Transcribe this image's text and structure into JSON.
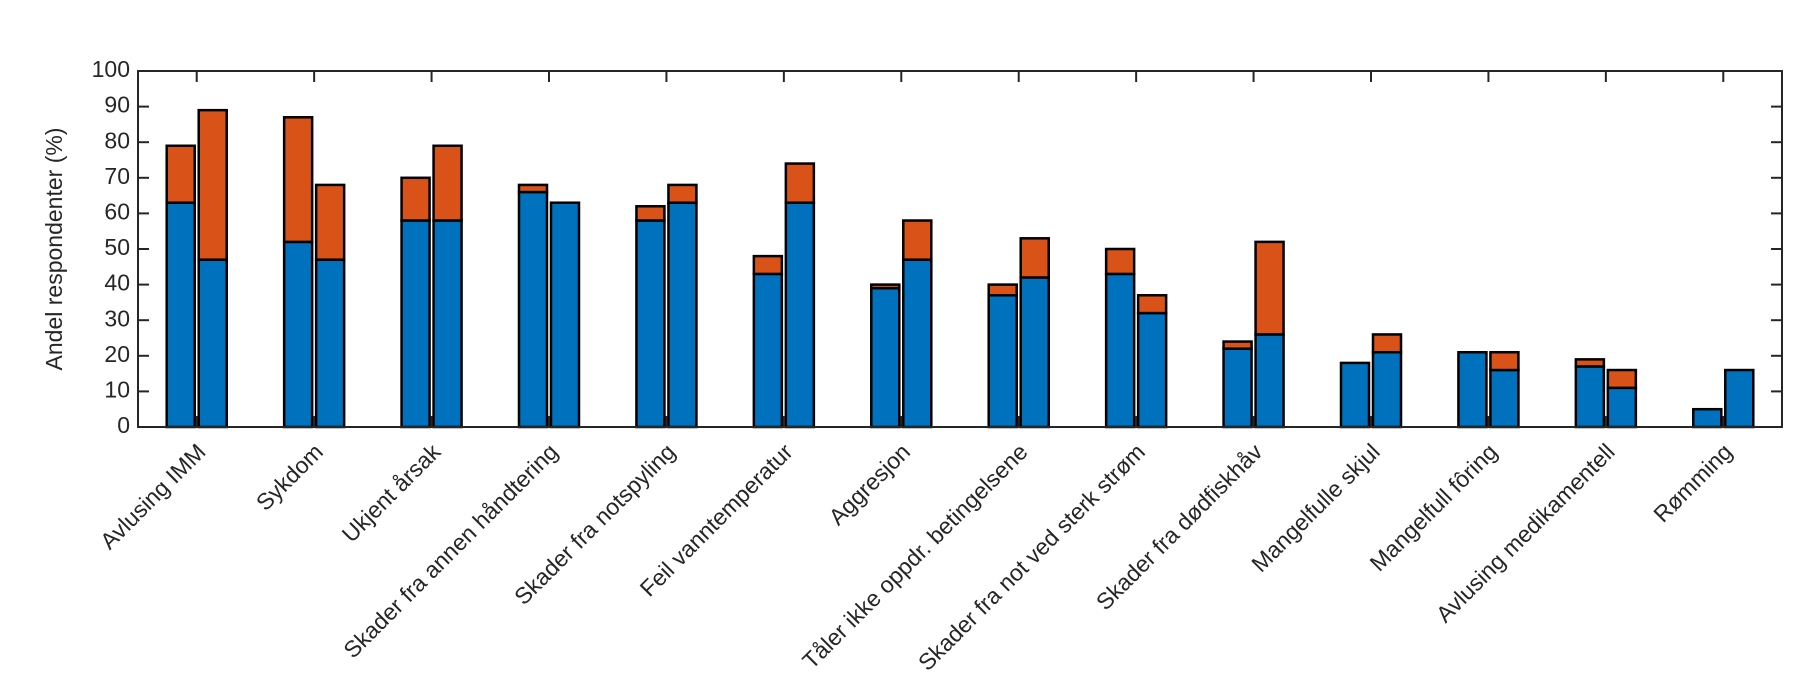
{
  "chart_data": {
    "type": "grouped-stacked-bar",
    "ylabel": "Andel respondenter (%)",
    "categories": [
      "Avlusing IMM",
      "Sykdom",
      "Ukjent årsak",
      "Skader fra annen håndtering",
      "Skader fra notspyling",
      "Feil vanntemperatur",
      "Aggresjon",
      "Tåler ikke oppdr. betingelsene",
      "Skader fra not ved sterk strøm",
      "Skader fra dødfiskhåv",
      "Mangelfulle skjul",
      "Mangelfull fôring",
      "Avlusing medikamentell",
      "Rømming"
    ],
    "groups": [
      {
        "series": [
          {
            "color": "#0072bd",
            "values": [
              63,
              52,
              58,
              66,
              58,
              43,
              39,
              37,
              43,
              22,
              18,
              21,
              17,
              5
            ]
          },
          {
            "color": "#d95319",
            "values": [
              16,
              35,
              12,
              2,
              4,
              5,
              1,
              3,
              7,
              2,
              0,
              0,
              2,
              0
            ]
          }
        ]
      },
      {
        "series": [
          {
            "color": "#0072bd",
            "values": [
              47,
              47,
              58,
              63,
              63,
              63,
              47,
              42,
              32,
              26,
              21,
              16,
              11,
              16
            ]
          },
          {
            "color": "#d95319",
            "values": [
              42,
              21,
              21,
              0,
              5,
              11,
              11,
              11,
              5,
              26,
              5,
              5,
              5,
              0
            ]
          }
        ]
      }
    ],
    "ylim": [
      0,
      100
    ],
    "yticks": [
      0,
      10,
      20,
      30,
      40,
      50,
      60,
      70,
      80,
      90,
      100
    ]
  }
}
